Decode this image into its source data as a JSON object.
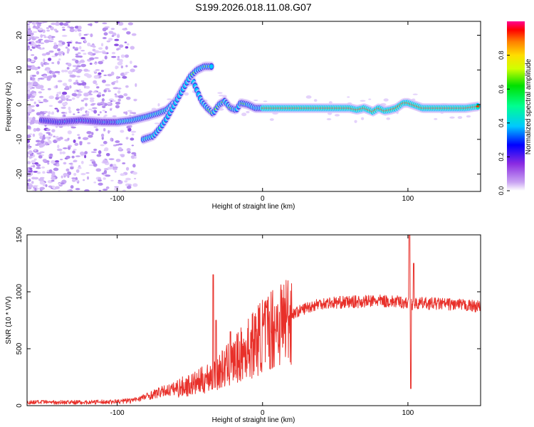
{
  "title": "S199.2026.018.11.08.G07",
  "chart_data": [
    {
      "type": "heatmap",
      "xlabel": "Height of straight line (km)",
      "ylabel": "Frequency (Hz)",
      "xlim": [
        -162,
        150
      ],
      "ylim": [
        -25,
        24
      ],
      "xticks": [
        "-100",
        "0",
        "100"
      ],
      "xtick_values": [
        -100,
        0,
        100
      ],
      "yticks": [
        "-20",
        "-10",
        "0",
        "10",
        "20"
      ],
      "ytick_values": [
        -20,
        -10,
        0,
        10,
        20
      ],
      "ridge": {
        "x": [
          -152,
          -140,
          -125,
          -110,
          -100,
          -90,
          -80,
          -72,
          -66,
          -60,
          -56,
          -52,
          -48,
          -45,
          -42,
          -38,
          -34,
          -30,
          -26,
          -22,
          -18,
          -15,
          -10,
          -5,
          0,
          5,
          10,
          20,
          40,
          60,
          65,
          70,
          76,
          80,
          84,
          88,
          92,
          97,
          100,
          110,
          125,
          140,
          148
        ],
        "y": [
          -4.5,
          -5,
          -4.5,
          -5,
          -5,
          -4.5,
          -3.5,
          -2.5,
          -1.5,
          1,
          4,
          6.5,
          7,
          4,
          1,
          -1,
          -2.5,
          0,
          1,
          -1,
          -1.5,
          0.5,
          0,
          -1,
          -1,
          -1,
          -1,
          -1,
          -1,
          -1,
          -1.5,
          -1,
          -2,
          -1,
          -1.8,
          -1.5,
          -1,
          0.5,
          0.5,
          -1,
          -1,
          -1,
          -0.5
        ]
      },
      "branch": {
        "x": [
          -82,
          -75,
          -70,
          -66,
          -62,
          -58,
          -54,
          -50,
          -45,
          -40,
          -35
        ],
        "y": [
          -10,
          -9,
          -6.5,
          -4,
          -1,
          2,
          5,
          8,
          10,
          11,
          11
        ]
      },
      "colorbar": {
        "label": "Normalized spectral amplitude",
        "ticks": [
          "0.0",
          "0.2",
          "0.4",
          "0.6",
          "0.8"
        ],
        "tick_values": [
          0,
          0.2,
          0.4,
          0.6,
          0.8
        ],
        "range": [
          0,
          1
        ]
      }
    },
    {
      "type": "line",
      "color": "#e8302a",
      "xlabel": "Height of straight line (km)",
      "ylabel": "SNR (10 * V/V)",
      "xlim": [
        -162,
        150
      ],
      "ylim": [
        0,
        1500
      ],
      "xticks": [
        "-100",
        "0",
        "100"
      ],
      "xtick_values": [
        -100,
        0,
        100
      ],
      "yticks": [
        "0",
        "500",
        "1000",
        "1500"
      ],
      "ytick_values": [
        0,
        500,
        1000,
        1500
      ],
      "envelope_x": [
        -162,
        -140,
        -120,
        -100,
        -90,
        -80,
        -70,
        -60,
        -50,
        -45,
        -40,
        -35,
        -30,
        -25,
        -20,
        -15,
        -10,
        -5,
        0,
        10,
        20,
        30,
        40,
        60,
        80,
        95,
        100,
        105,
        110,
        130,
        150
      ],
      "envelope_y": [
        30,
        30,
        30,
        35,
        45,
        80,
        120,
        150,
        180,
        200,
        230,
        270,
        300,
        340,
        380,
        440,
        500,
        560,
        620,
        720,
        800,
        860,
        900,
        910,
        920,
        910,
        900,
        890,
        900,
        890,
        870
      ],
      "spikes": [
        {
          "x": -34,
          "y": 1150
        },
        {
          "x": -32,
          "y": 750
        },
        {
          "x": -22,
          "y": 650
        },
        {
          "x": 101,
          "y": 1540
        },
        {
          "x": 102,
          "y": 150
        },
        {
          "x": 104,
          "y": 1250
        }
      ]
    }
  ]
}
